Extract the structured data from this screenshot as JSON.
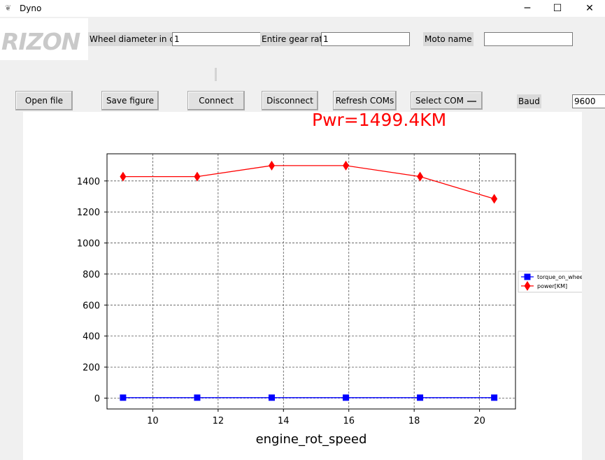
{
  "window": {
    "title": "Dyno",
    "app_icon": "feather-icon",
    "controls": {
      "minimize": "─",
      "maximize": "☐",
      "close": "✕"
    }
  },
  "logo": {
    "text": "RIZON"
  },
  "inputs": {
    "wheel_diameter": {
      "label": "Wheel diameter in cm",
      "value": "1"
    },
    "gear_ratio": {
      "label": "Entire gear ratio",
      "value": "1"
    },
    "moto_name": {
      "label": "Moto name",
      "value": ""
    },
    "baud": {
      "label": "Baud",
      "value": "9600"
    }
  },
  "buttons": {
    "open_file": "Open file",
    "save_figure": "Save figure",
    "connect": "Connect",
    "disconnect": "Disconnect",
    "refresh_coms": "Refresh COMs",
    "select_com": "Select COM"
  },
  "figure": {
    "pwr_text": "Pwr=1499.4KM"
  },
  "chart_data": {
    "type": "line",
    "title": "",
    "xlabel": "engine_rot_speed",
    "ylabel": "",
    "xlim": [
      8.6,
      21.1
    ],
    "ylim": [
      -70,
      1575
    ],
    "xticks": [
      10,
      12,
      14,
      16,
      18,
      20
    ],
    "yticks": [
      0,
      200,
      400,
      600,
      800,
      1000,
      1200,
      1400
    ],
    "grid": true,
    "legend_position": "right",
    "x": [
      9.09,
      11.36,
      13.64,
      15.91,
      18.18,
      20.45
    ],
    "series": [
      {
        "name": "torque_on_whee",
        "color": "#0000ff",
        "marker": "square",
        "values": [
          3,
          3,
          3,
          3,
          3,
          3
        ]
      },
      {
        "name": "power[KM]",
        "color": "#ff0000",
        "marker": "diamond",
        "values": [
          1428,
          1428,
          1499,
          1499,
          1428,
          1285
        ]
      }
    ]
  }
}
